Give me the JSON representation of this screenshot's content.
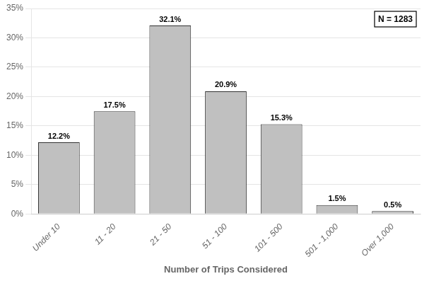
{
  "chart_data": {
    "type": "bar",
    "categories": [
      "Under 10",
      "11 - 20",
      "21 - 50",
      "51 - 100",
      "101 - 500",
      "501 - 1,000",
      "Over 1,000"
    ],
    "values": [
      12.2,
      17.5,
      32.1,
      20.9,
      15.3,
      1.5,
      0.5
    ],
    "value_labels": [
      "12.2%",
      "17.5%",
      "32.1%",
      "20.9%",
      "15.3%",
      "1.5%",
      "0.5%"
    ],
    "data_labels": true,
    "color": "#C0C0C0",
    "xlabel": "Number of Trips Considered",
    "annotations": [
      "N = 1283"
    ],
    "ylim": [
      0,
      35
    ],
    "yticks": [
      {
        "value": 0,
        "label": "0%"
      },
      {
        "value": 5,
        "label": "5%"
      },
      {
        "value": 10,
        "label": "10%"
      },
      {
        "value": 15,
        "label": "15%"
      },
      {
        "value": 20,
        "label": "20%"
      },
      {
        "value": 25,
        "label": "25%"
      },
      {
        "value": 30,
        "label": "30%"
      },
      {
        "value": 35,
        "label": "35%"
      }
    ],
    "grid": true
  }
}
